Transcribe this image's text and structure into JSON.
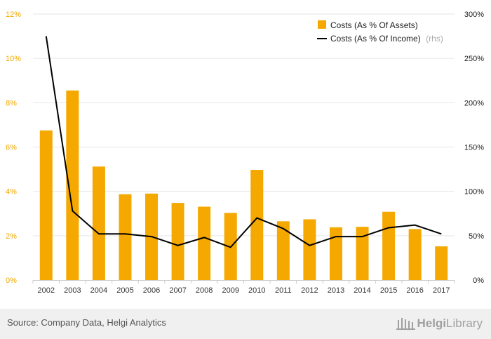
{
  "chart_data": {
    "type": "bar+line",
    "categories": [
      "2002",
      "2003",
      "2004",
      "2005",
      "2006",
      "2007",
      "2008",
      "2009",
      "2010",
      "2011",
      "2012",
      "2013",
      "2014",
      "2015",
      "2016",
      "2017"
    ],
    "series": [
      {
        "name": "Costs (As % Of Assets)",
        "type": "bar",
        "axis": "left",
        "color": "#f5a800",
        "values": [
          6.75,
          8.55,
          5.12,
          3.87,
          3.9,
          3.48,
          3.31,
          3.03,
          4.97,
          2.65,
          2.74,
          2.38,
          2.4,
          3.08,
          2.3,
          1.52
        ]
      },
      {
        "name": "Costs (As % Of Income)",
        "suffix": "(rhs)",
        "type": "line",
        "axis": "right",
        "color": "#000000",
        "values": [
          275,
          78,
          52,
          52,
          49,
          39,
          48,
          37,
          70,
          58,
          39,
          49,
          49,
          59,
          62,
          52
        ]
      }
    ],
    "left_axis": {
      "min": 0,
      "max": 12,
      "ticks": [
        "0%",
        "2%",
        "4%",
        "6%",
        "8%",
        "10%",
        "12%"
      ]
    },
    "right_axis": {
      "min": 0,
      "max": 300,
      "ticks": [
        "0%",
        "50%",
        "100%",
        "150%",
        "200%",
        "250%",
        "300%"
      ]
    },
    "grid": true,
    "legend": "top-right"
  },
  "footer": {
    "source": "Source: Company Data, Helgi Analytics",
    "logo_bold": "Helgi",
    "logo_rest": "Library"
  }
}
